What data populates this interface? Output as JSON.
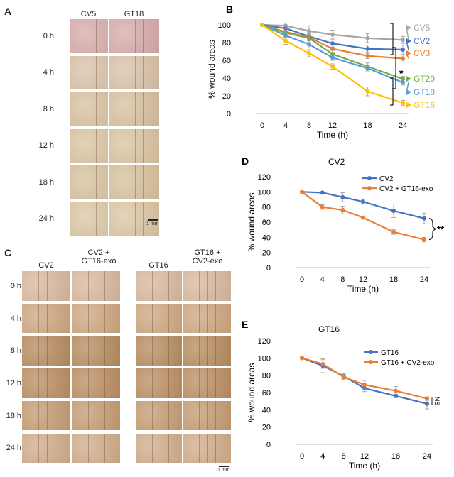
{
  "panels": {
    "A": {
      "letter": "A",
      "columns": [
        "CV5",
        "GT18"
      ],
      "rows": [
        "0 h",
        "4 h",
        "8 h",
        "12 h",
        "18 h",
        "24 h"
      ],
      "scale": "1 mm",
      "tints": [
        "#d7a9a9",
        "#d9c0a6",
        "#d8bf9d",
        "#d9c39f",
        "#d7c09c",
        "#dac5a2"
      ]
    },
    "C": {
      "letter": "C",
      "columns": [
        "CV2",
        "CV2 +\nGT16-exo",
        "GT16",
        "GT16 +\nCV2-exo"
      ],
      "rows": [
        "0 h",
        "4 h",
        "8 h",
        "12 h",
        "18 h",
        "24 h"
      ],
      "scale": "1 mm",
      "tints": [
        "#d8b79c",
        "#cda57e",
        "#b58a5c",
        "#b98c60",
        "#c49a70",
        "#d0ab88"
      ]
    }
  },
  "chart_data": [
    {
      "id": "B",
      "letter": "B",
      "type": "line",
      "title": "",
      "xlabel": "Time (h)",
      "ylabel": "%  wound areas",
      "x": [
        0,
        4,
        8,
        12,
        18,
        24
      ],
      "xlim": [
        0,
        24
      ],
      "ylim": [
        0,
        100
      ],
      "yticks": [
        0,
        20,
        40,
        60,
        80,
        100
      ],
      "significance": "*",
      "series": [
        {
          "name": "CV5",
          "color": "#a6a6a6",
          "values": [
            100,
            99,
            93,
            89,
            85,
            83
          ],
          "err": [
            0,
            3,
            6,
            5,
            5,
            4
          ]
        },
        {
          "name": "CV2",
          "color": "#4472c4",
          "values": [
            100,
            96,
            87,
            79,
            73,
            72
          ],
          "err": [
            0,
            3,
            4,
            4,
            4,
            5
          ]
        },
        {
          "name": "CV3",
          "color": "#ed7d31",
          "values": [
            100,
            92,
            86,
            73,
            65,
            62
          ],
          "err": [
            0,
            4,
            3,
            4,
            3,
            4
          ]
        },
        {
          "name": "GT29",
          "color": "#70ad47",
          "values": [
            100,
            91,
            85,
            67,
            53,
            39
          ],
          "err": [
            0,
            8,
            5,
            4,
            4,
            3
          ]
        },
        {
          "name": "GT18",
          "color": "#5b9bd5",
          "values": [
            100,
            88,
            78,
            63,
            51,
            35
          ],
          "err": [
            0,
            5,
            4,
            3,
            3,
            3
          ]
        },
        {
          "name": "GT16",
          "color": "#ffc000",
          "values": [
            100,
            82,
            68,
            53,
            25,
            12
          ],
          "err": [
            0,
            4,
            4,
            3,
            5,
            3
          ]
        }
      ]
    },
    {
      "id": "D",
      "letter": "D",
      "type": "line",
      "title": "CV2",
      "xlabel": "Time (h)",
      "ylabel": "% wound areas",
      "x": [
        0,
        4,
        8,
        12,
        18,
        24
      ],
      "xlim": [
        0,
        24
      ],
      "ylim": [
        0,
        120
      ],
      "yticks": [
        0,
        20,
        40,
        60,
        80,
        100,
        120
      ],
      "significance": "**",
      "series": [
        {
          "name": "CV2",
          "color": "#4472c4",
          "values": [
            100,
            99,
            93,
            87,
            75,
            65
          ],
          "err": [
            0,
            1,
            6,
            3,
            9,
            7
          ]
        },
        {
          "name": "CV2 + GT16-exo",
          "color": "#ed7d31",
          "values": [
            100,
            80,
            76,
            66,
            47,
            37
          ],
          "err": [
            0,
            3,
            5,
            1,
            3,
            3
          ]
        }
      ]
    },
    {
      "id": "E",
      "letter": "E",
      "type": "line",
      "title": "GT16",
      "xlabel": "Time (h)",
      "ylabel": "% wound areas",
      "x": [
        0,
        4,
        8,
        12,
        18,
        24
      ],
      "xlim": [
        0,
        24
      ],
      "ylim": [
        0,
        120
      ],
      "yticks": [
        0,
        20,
        40,
        60,
        80,
        100,
        120
      ],
      "significance": "NS",
      "series": [
        {
          "name": "GT16",
          "color": "#4472c4",
          "values": [
            100,
            91,
            79,
            65,
            56,
            47
          ],
          "err": [
            0,
            8,
            3,
            4,
            2,
            6
          ]
        },
        {
          "name": "GT16 + CV2-exo",
          "color": "#ed7d31",
          "values": [
            100,
            93,
            78,
            69,
            62,
            53
          ],
          "err": [
            0,
            5,
            3,
            5,
            5,
            2
          ]
        }
      ]
    }
  ]
}
